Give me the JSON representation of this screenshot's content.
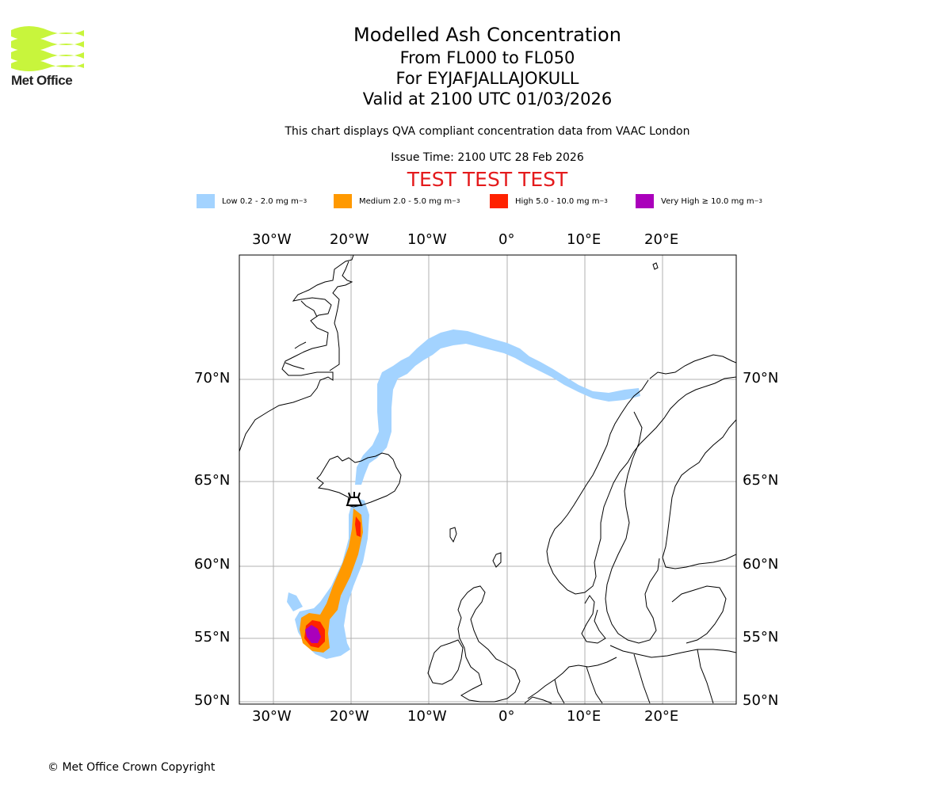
{
  "header": {
    "logo_text": "Met Office",
    "title": "Modelled Ash Concentration",
    "level_range": "From FL000 to FL050",
    "volcano_line": "For EYJAFJALLAJOKULL",
    "valid_line": "Valid at 2100 UTC 01/03/2026",
    "description": "This chart displays QVA compliant concentration data from VAAC London",
    "issue_time": "Issue Time: 2100 UTC 28 Feb 2026",
    "test_banner": "TEST TEST TEST"
  },
  "legend": [
    {
      "label": "Low 0.2 - 2.0 mg m",
      "unit_sup": "−3",
      "color": "#a3d3ff"
    },
    {
      "label": "Medium 2.0 - 5.0 mg m",
      "unit_sup": "−3",
      "color": "#ff9900"
    },
    {
      "label": "High 5.0 - 10.0 mg m",
      "unit_sup": "−3",
      "color": "#ff2200"
    },
    {
      "label": "Very High  ≥  10.0 mg m",
      "unit_sup": "−3",
      "color": "#aa00bb"
    }
  ],
  "axes": {
    "lon_labels": [
      "30°W",
      "20°W",
      "10°W",
      "0°",
      "10°E",
      "20°E"
    ],
    "lat_labels": [
      "70°N",
      "65°N",
      "60°N",
      "55°N",
      "50°N"
    ]
  },
  "footer": {
    "copyright": "© Met Office Crown Copyright"
  },
  "colors": {
    "logo_green": "#c8f53c",
    "banner_red": "#e41a1c",
    "grid": "#b0b0b0"
  }
}
